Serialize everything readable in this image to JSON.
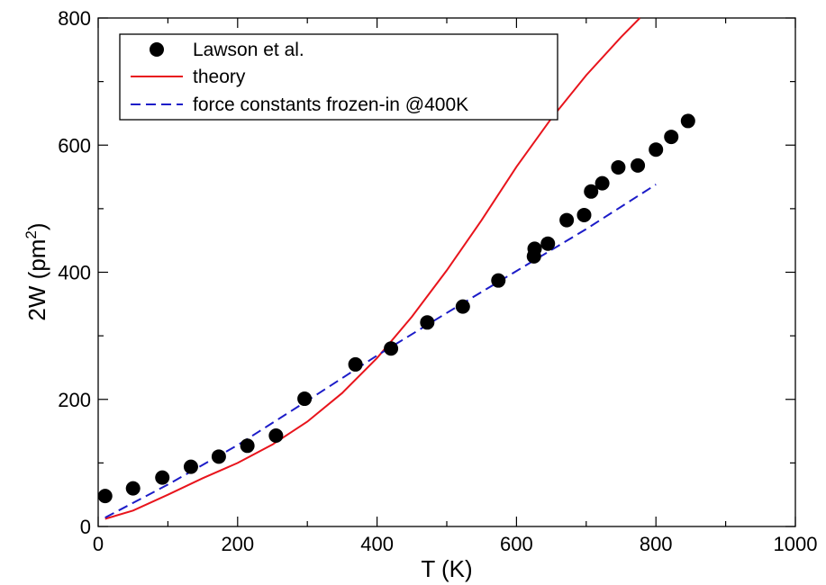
{
  "chart_data": {
    "type": "scatter",
    "title": "",
    "xlabel": "T  (K)",
    "ylabel": {
      "prefix": "2W  (pm",
      "sup": "2",
      "suffix": ")"
    },
    "xlim": [
      0,
      1000
    ],
    "ylim": [
      0,
      800
    ],
    "xticks": [
      0,
      200,
      400,
      600,
      800,
      1000
    ],
    "yticks": [
      0,
      200,
      400,
      600,
      800
    ],
    "xtick_labels": [
      "0",
      "200",
      "400",
      "600",
      "800",
      "1000"
    ],
    "ytick_labels": [
      "0",
      "200",
      "400",
      "600",
      "800"
    ],
    "grid": false,
    "legend": {
      "placement": "top-left"
    },
    "series": [
      {
        "name": "Lawson et al.",
        "type": "scatter",
        "color": "#000000",
        "x": [
          10,
          50,
          92,
          133,
          173,
          214,
          255,
          296,
          369,
          420,
          472,
          523,
          574,
          625,
          626,
          645,
          672,
          697,
          707,
          723,
          746,
          774,
          800,
          822,
          846
        ],
        "y": [
          48,
          60,
          77,
          94,
          110,
          127,
          143,
          201,
          255,
          280,
          321,
          346,
          387,
          425,
          437,
          445,
          482,
          490,
          527,
          540,
          565,
          568,
          593,
          613,
          638
        ]
      },
      {
        "name": "theory",
        "type": "line",
        "color": "#e8141c",
        "style": "solid",
        "x": [
          10,
          50,
          100,
          150,
          200,
          250,
          300,
          350,
          400,
          450,
          500,
          550,
          600,
          650,
          700,
          750,
          777
        ],
        "y": [
          12,
          25,
          50,
          76,
          100,
          129,
          165,
          210,
          265,
          330,
          403,
          482,
          566,
          642,
          710,
          770,
          800
        ]
      },
      {
        "name": "force constants frozen-in @400K",
        "type": "line",
        "color": "#1c1cc8",
        "style": "dashed",
        "x": [
          10,
          100,
          200,
          300,
          400,
          500,
          600,
          700,
          800
        ],
        "y": [
          14,
          66,
          128,
          198,
          269,
          336,
          402,
          468,
          538
        ]
      }
    ]
  }
}
